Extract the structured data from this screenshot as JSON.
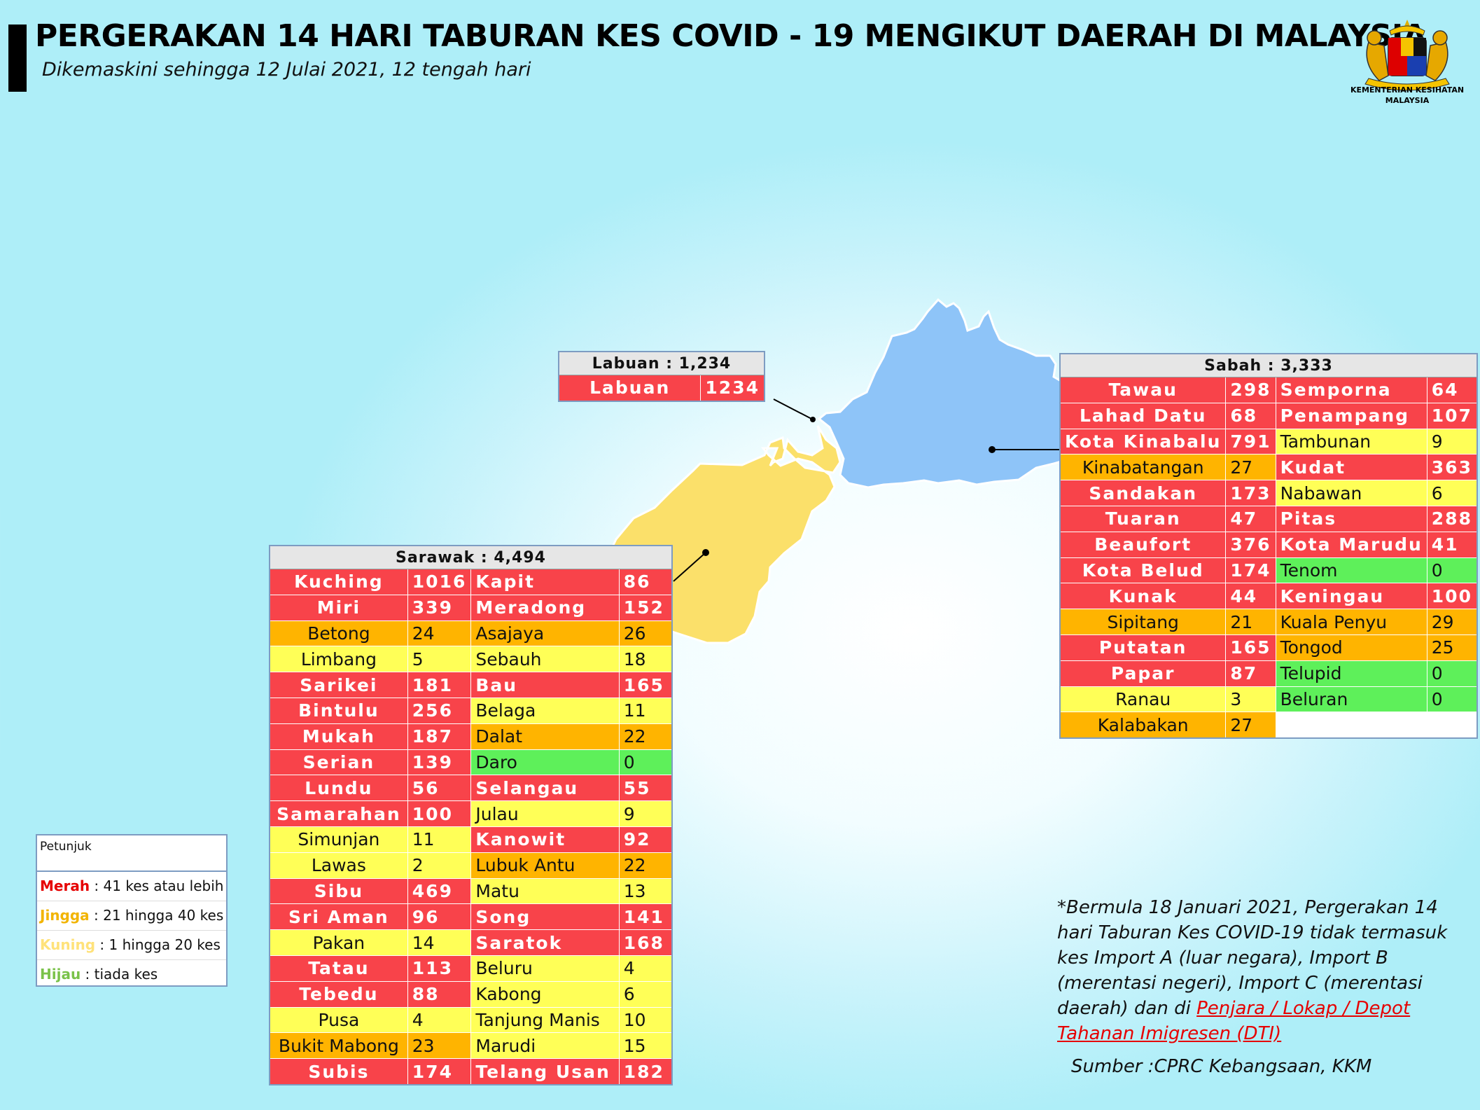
{
  "header": {
    "title": "PERGERAKAN 14 HARI TABURAN KES COVID - 19 MENGIKUT DAERAH DI MALAYSIA",
    "subtitle": "Dikemaskini sehingga 12 Julai 2021, 12 tengah hari"
  },
  "logo": {
    "text_line1": "KEMENTERIAN KESIHATAN",
    "text_line2": "MALAYSIA"
  },
  "colors": {
    "red": "#f8434a",
    "orange": "#ffb400",
    "yellow": "#ffff57",
    "green": "#5ef05a",
    "sabah_fill": "#8ec4f8",
    "sarawak_fill": "#fbe06a"
  },
  "labuan": {
    "header": "Labuan : 1,234",
    "rows": [
      {
        "name": "Labuan",
        "cases": "1234",
        "level": "r"
      }
    ]
  },
  "sabah": {
    "header": "Sabah : 3,333",
    "rows": [
      [
        {
          "name": "Tawau",
          "cases": "298",
          "level": "r"
        },
        {
          "name": "Semporna",
          "cases": "64",
          "level": "r"
        }
      ],
      [
        {
          "name": "Lahad Datu",
          "cases": "68",
          "level": "r"
        },
        {
          "name": "Penampang",
          "cases": "107",
          "level": "r"
        }
      ],
      [
        {
          "name": "Kota Kinabalu",
          "cases": "791",
          "level": "r"
        },
        {
          "name": "Tambunan",
          "cases": "9",
          "level": "y"
        }
      ],
      [
        {
          "name": "Kinabatangan",
          "cases": "27",
          "level": "o"
        },
        {
          "name": "Kudat",
          "cases": "363",
          "level": "r"
        }
      ],
      [
        {
          "name": "Sandakan",
          "cases": "173",
          "level": "r"
        },
        {
          "name": "Nabawan",
          "cases": "6",
          "level": "y"
        }
      ],
      [
        {
          "name": "Tuaran",
          "cases": "47",
          "level": "r"
        },
        {
          "name": "Pitas",
          "cases": "288",
          "level": "r"
        }
      ],
      [
        {
          "name": "Beaufort",
          "cases": "376",
          "level": "r"
        },
        {
          "name": "Kota Marudu",
          "cases": "41",
          "level": "r"
        }
      ],
      [
        {
          "name": "Kota Belud",
          "cases": "174",
          "level": "r"
        },
        {
          "name": "Tenom",
          "cases": "0",
          "level": "g"
        }
      ],
      [
        {
          "name": "Kunak",
          "cases": "44",
          "level": "r"
        },
        {
          "name": "Keningau",
          "cases": "100",
          "level": "r"
        }
      ],
      [
        {
          "name": "Sipitang",
          "cases": "21",
          "level": "o"
        },
        {
          "name": "Kuala Penyu",
          "cases": "29",
          "level": "o"
        }
      ],
      [
        {
          "name": "Putatan",
          "cases": "165",
          "level": "r"
        },
        {
          "name": "Tongod",
          "cases": "25",
          "level": "o"
        }
      ],
      [
        {
          "name": "Papar",
          "cases": "87",
          "level": "r"
        },
        {
          "name": "Telupid",
          "cases": "0",
          "level": "g"
        }
      ],
      [
        {
          "name": "Ranau",
          "cases": "3",
          "level": "y"
        },
        {
          "name": "Beluran",
          "cases": "0",
          "level": "g"
        }
      ],
      [
        {
          "name": "Kalabakan",
          "cases": "27",
          "level": "o"
        },
        {
          "name": "",
          "cases": "",
          "level": "e"
        }
      ]
    ]
  },
  "sarawak": {
    "header": "Sarawak : 4,494",
    "rows": [
      [
        {
          "name": "Kuching",
          "cases": "1016",
          "level": "r"
        },
        {
          "name": "Kapit",
          "cases": "86",
          "level": "r"
        }
      ],
      [
        {
          "name": "Miri",
          "cases": "339",
          "level": "r"
        },
        {
          "name": "Meradong",
          "cases": "152",
          "level": "r"
        }
      ],
      [
        {
          "name": "Betong",
          "cases": "24",
          "level": "o"
        },
        {
          "name": "Asajaya",
          "cases": "26",
          "level": "o"
        }
      ],
      [
        {
          "name": "Limbang",
          "cases": "5",
          "level": "y"
        },
        {
          "name": "Sebauh",
          "cases": "18",
          "level": "y"
        }
      ],
      [
        {
          "name": "Sarikei",
          "cases": "181",
          "level": "r"
        },
        {
          "name": "Bau",
          "cases": "165",
          "level": "r"
        }
      ],
      [
        {
          "name": "Bintulu",
          "cases": "256",
          "level": "r"
        },
        {
          "name": "Belaga",
          "cases": "11",
          "level": "y"
        }
      ],
      [
        {
          "name": "Mukah",
          "cases": "187",
          "level": "r"
        },
        {
          "name": "Dalat",
          "cases": "22",
          "level": "o"
        }
      ],
      [
        {
          "name": "Serian",
          "cases": "139",
          "level": "r"
        },
        {
          "name": "Daro",
          "cases": "0",
          "level": "g"
        }
      ],
      [
        {
          "name": "Lundu",
          "cases": "56",
          "level": "r"
        },
        {
          "name": "Selangau",
          "cases": "55",
          "level": "r"
        }
      ],
      [
        {
          "name": "Samarahan",
          "cases": "100",
          "level": "r"
        },
        {
          "name": "Julau",
          "cases": "9",
          "level": "y"
        }
      ],
      [
        {
          "name": "Simunjan",
          "cases": "11",
          "level": "y"
        },
        {
          "name": "Kanowit",
          "cases": "92",
          "level": "r"
        }
      ],
      [
        {
          "name": "Lawas",
          "cases": "2",
          "level": "y"
        },
        {
          "name": "Lubuk Antu",
          "cases": "22",
          "level": "o"
        }
      ],
      [
        {
          "name": "Sibu",
          "cases": "469",
          "level": "r"
        },
        {
          "name": "Matu",
          "cases": "13",
          "level": "y"
        }
      ],
      [
        {
          "name": "Sri Aman",
          "cases": "96",
          "level": "r"
        },
        {
          "name": "Song",
          "cases": "141",
          "level": "r"
        }
      ],
      [
        {
          "name": "Pakan",
          "cases": "14",
          "level": "y"
        },
        {
          "name": "Saratok",
          "cases": "168",
          "level": "r"
        }
      ],
      [
        {
          "name": "Tatau",
          "cases": "113",
          "level": "r"
        },
        {
          "name": "Beluru",
          "cases": "4",
          "level": "y"
        }
      ],
      [
        {
          "name": "Tebedu",
          "cases": "88",
          "level": "r"
        },
        {
          "name": "Kabong",
          "cases": "6",
          "level": "y"
        }
      ],
      [
        {
          "name": "Pusa",
          "cases": "4",
          "level": "y"
        },
        {
          "name": "Tanjung Manis",
          "cases": "10",
          "level": "y"
        }
      ],
      [
        {
          "name": "Bukit Mabong",
          "cases": "23",
          "level": "o"
        },
        {
          "name": "Marudi",
          "cases": "15",
          "level": "y"
        }
      ],
      [
        {
          "name": "Subis",
          "cases": "174",
          "level": "r"
        },
        {
          "name": "Telang Usan",
          "cases": "182",
          "level": "r"
        }
      ]
    ]
  },
  "legend": {
    "title": "Petunjuk",
    "items": [
      {
        "key": "Merah",
        "desc": " : 41 kes atau lebih",
        "color": "#e60000"
      },
      {
        "key": "Jingga",
        "desc": " : 21 hingga 40 kes",
        "color": "#f2b400"
      },
      {
        "key": "Kuning",
        "desc": " : 1 hingga 20 kes",
        "color": "#ffe27a"
      },
      {
        "key": "Hijau",
        "desc": " : tiada kes",
        "color": "#7ac24a"
      }
    ]
  },
  "note": {
    "text": "*Bermula 18 Januari 2021, Pergerakan 14 hari Taburan Kes COVID-19 tidak termasuk kes Import A (luar negara), Import B (merentasi negeri), Import C (merentasi daerah) dan di ",
    "link": "Penjara / Lokap / Depot Tahanan Imigresen (DTI)"
  },
  "source": "Sumber :CPRC Kebangsaan,  KKM"
}
